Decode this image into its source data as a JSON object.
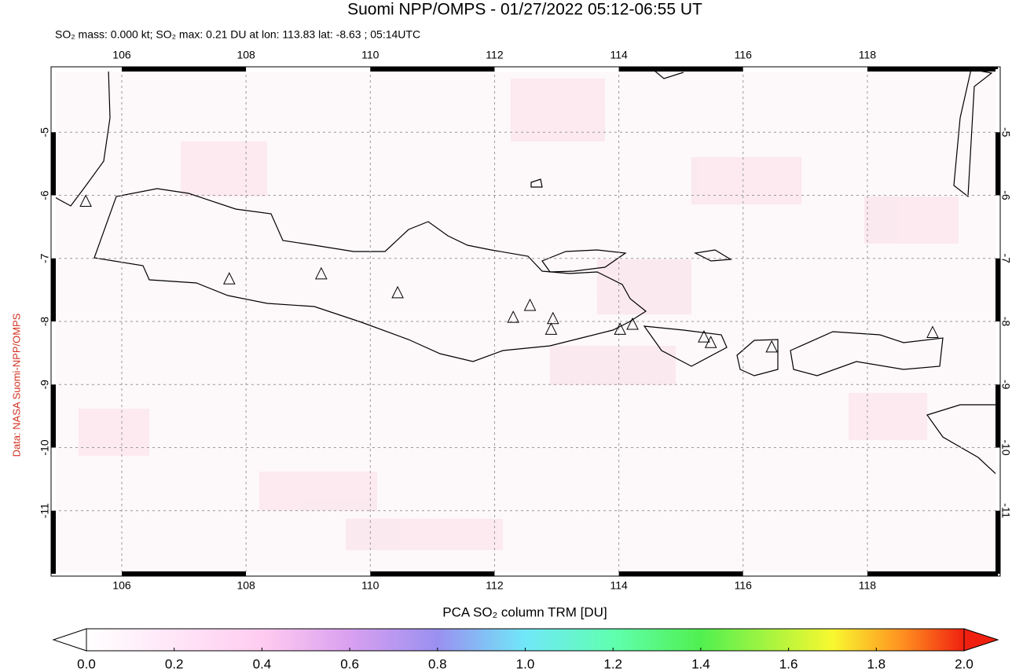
{
  "title": "Suomi NPP/OMPS - 01/27/2022 05:12-06:55 UT",
  "subtitle": "SO₂ mass: 0.000 kt; SO₂ max: 0.21 DU at lon: 113.83 lat: -8.63 ; 05:14UTC",
  "credit": "Data: NASA Suomi-NPP/OMPS",
  "map": {
    "lonlim": [
      104.9,
      120.1
    ],
    "latlim": [
      -12,
      -4
    ],
    "lonticks": [
      106,
      108,
      110,
      112,
      114,
      116,
      118
    ],
    "latticks": [
      -5,
      -6,
      -7,
      -8,
      -9,
      -10,
      -11
    ],
    "grid": true,
    "volcanoes": {
      "lon": [
        105.42,
        107.73,
        109.21,
        110.44,
        112.3,
        112.57,
        112.94,
        112.91,
        114.02,
        114.22,
        115.37,
        115.48,
        116.46,
        119.05
      ],
      "lat": [
        -6.1,
        -7.33,
        -7.25,
        -7.55,
        -7.94,
        -7.75,
        -7.96,
        -8.13,
        -8.13,
        -8.05,
        -8.25,
        -8.34,
        -8.41,
        -8.18
      ]
    }
  },
  "colorbar": {
    "label": "PCA SO₂ column TRM [DU]",
    "lim": [
      0,
      2
    ],
    "ticks": [
      {
        "value": 0,
        "label": "0.0"
      },
      {
        "value": 0.2,
        "label": "0.2"
      },
      {
        "value": 0.4,
        "label": "0.4"
      },
      {
        "value": 0.6,
        "label": "0.6"
      },
      {
        "value": 0.8,
        "label": "0.8"
      },
      {
        "value": 1,
        "label": "1.0"
      },
      {
        "value": 1.2,
        "label": "1.2"
      },
      {
        "value": 1.4,
        "label": "1.4"
      },
      {
        "value": 1.6,
        "label": "1.6"
      },
      {
        "value": 1.8,
        "label": "1.8"
      },
      {
        "value": 2,
        "label": "2.0"
      }
    ]
  }
}
